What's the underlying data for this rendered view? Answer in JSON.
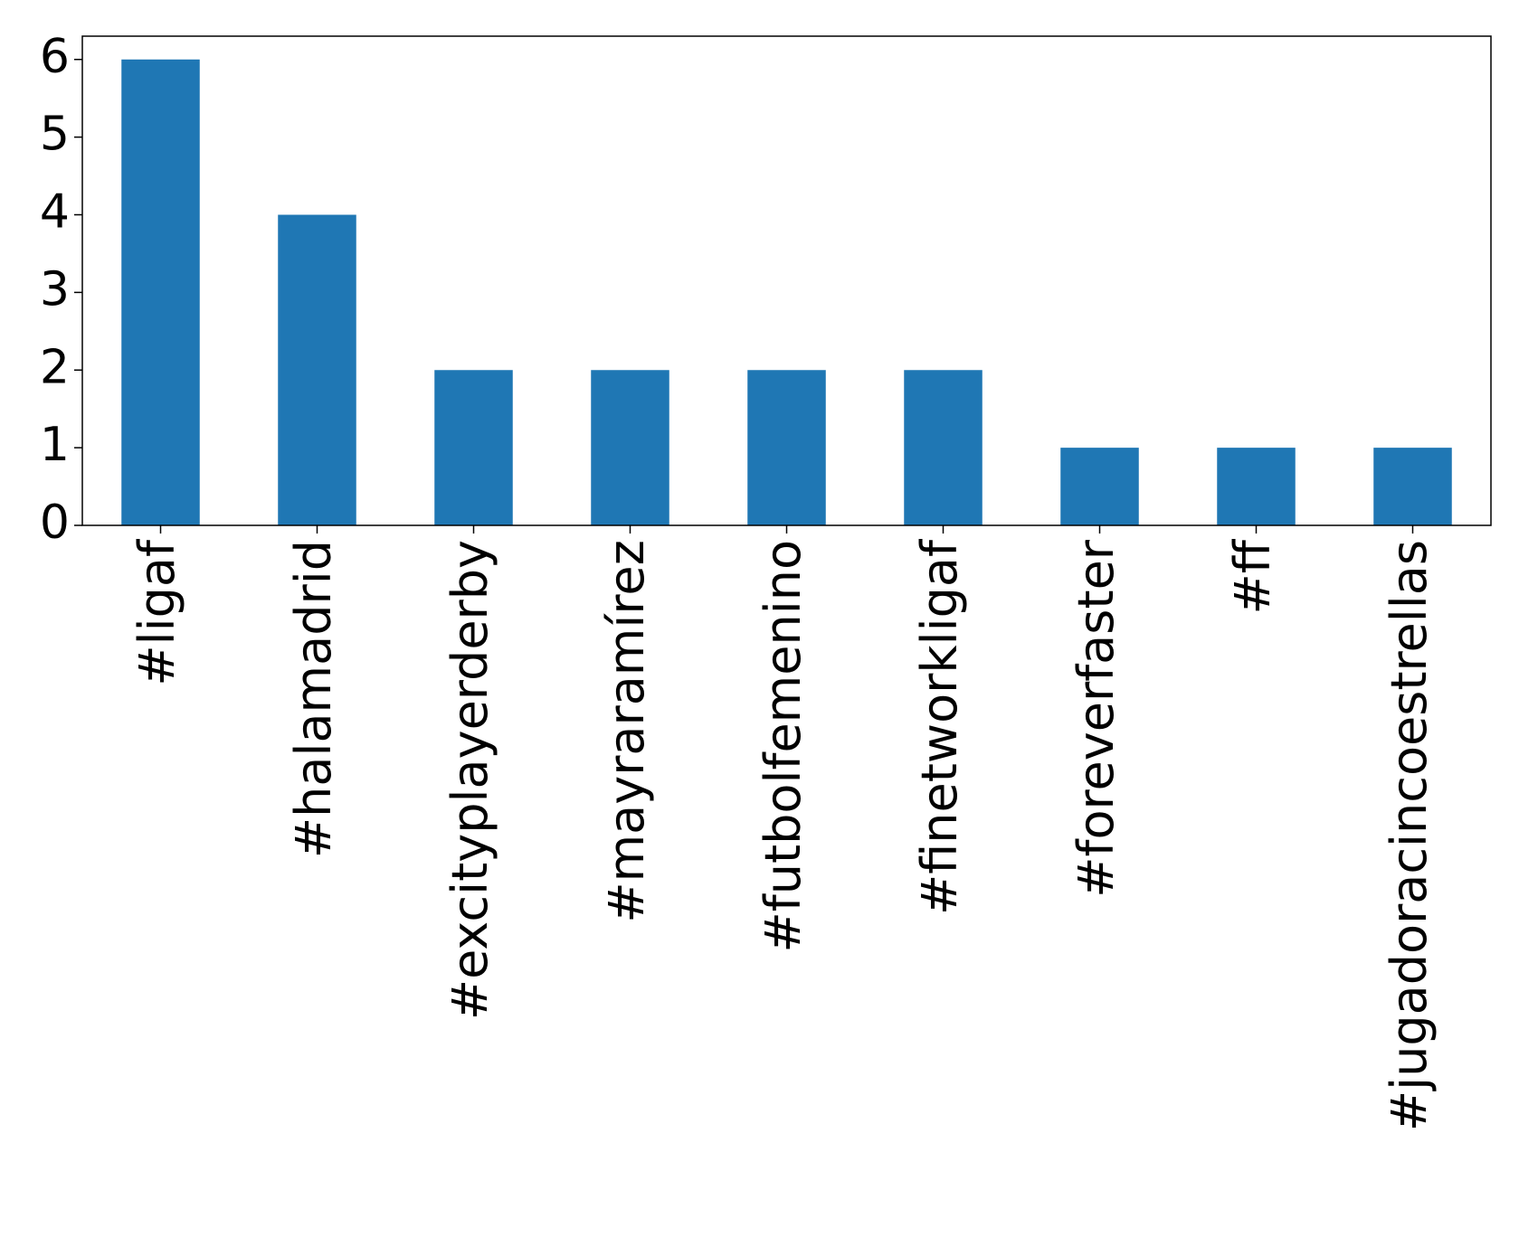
{
  "chart_data": {
    "type": "bar",
    "categories": [
      "#ligaf",
      "#halamadrid",
      "#excityplayerderby",
      "#mayraramírez",
      "#futbolfemenino",
      "#finetworkligaf",
      "#foreverfaster",
      "#ff",
      "#jugadoracincoestrellas"
    ],
    "values": [
      6,
      4,
      2,
      2,
      2,
      2,
      1,
      1,
      1
    ],
    "color": "#1f77b4",
    "ylim": [
      0,
      6.3
    ],
    "yticks": [
      0,
      1,
      2,
      3,
      4,
      5,
      6
    ],
    "grid": false
  }
}
